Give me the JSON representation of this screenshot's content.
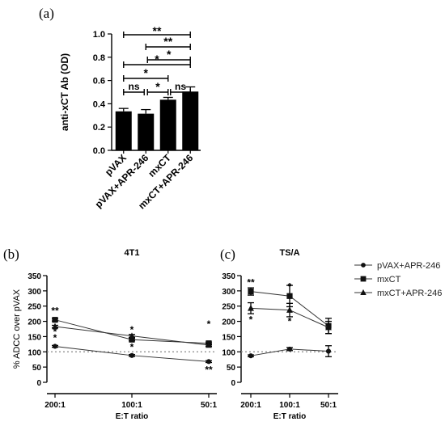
{
  "chart_data": [
    {
      "type": "bar",
      "panel_label": "(a)",
      "ylabel": "anti-xCT Ab (OD)",
      "ylim": [
        0,
        1.0
      ],
      "yticks": [
        "0.0",
        "0.2",
        "0.4",
        "0.6",
        "0.8",
        "1.0"
      ],
      "categories": [
        "pVAX",
        "pVAX+APR-246",
        "mxCT",
        "mxCT+APR-246"
      ],
      "values": [
        0.335,
        0.315,
        0.435,
        0.505
      ],
      "errors": [
        0.025,
        0.035,
        0.02,
        0.04
      ],
      "comparisons": [
        {
          "from": 0,
          "to": 3,
          "label": "**"
        },
        {
          "from": 1,
          "to": 3,
          "label": "**"
        },
        {
          "from": 1,
          "to": 3,
          "label": "*"
        },
        {
          "from": 0,
          "to": 3,
          "label": "*"
        },
        {
          "from": 0,
          "to": 2,
          "label": "*"
        },
        {
          "from": 1,
          "to": 2,
          "label": "*"
        },
        {
          "from": 2,
          "to": 3,
          "label": "ns"
        },
        {
          "from": 0,
          "to": 1,
          "label": "ns"
        }
      ]
    },
    {
      "type": "line",
      "panel_label": "(b)",
      "title": "4T1",
      "ylabel": "% ADCC over pVAX",
      "xlabel": "E:T ratio",
      "ylim": [
        0,
        350
      ],
      "yticks": [
        "0",
        "50",
        "100",
        "150",
        "200",
        "250",
        "300",
        "350"
      ],
      "categories": [
        "200:1",
        "100:1",
        "50:1"
      ],
      "reference_line": 100,
      "series": [
        {
          "name": "pVAX+APR-246",
          "marker": "circle",
          "values": [
            118,
            88,
            68
          ],
          "errors": [
            3,
            3,
            3
          ],
          "annotations": [
            "*",
            "",
            "**"
          ]
        },
        {
          "name": "mxCT",
          "marker": "square",
          "values": [
            205,
            140,
            128
          ],
          "errors": [
            4,
            4,
            4
          ],
          "annotations": [
            "**",
            "*",
            ""
          ]
        },
        {
          "name": "mxCT+APR-246",
          "marker": "triangle",
          "values": [
            183,
            152,
            122
          ],
          "errors": [
            4,
            5,
            4
          ],
          "annotations": [
            "*",
            "*",
            "*"
          ]
        }
      ]
    },
    {
      "type": "line",
      "panel_label": "(c)",
      "title": "TS/A",
      "xlabel": "E:T ratio",
      "ylim": [
        0,
        350
      ],
      "yticks": [
        "0",
        "50",
        "100",
        "150",
        "200",
        "250",
        "300",
        "350"
      ],
      "categories": [
        "200:1",
        "100:1",
        "50:1"
      ],
      "reference_line": 100,
      "legend_position": "right",
      "series": [
        {
          "name": "pVAX+APR-246",
          "marker": "circle",
          "values": [
            87,
            109,
            102
          ],
          "errors": [
            3,
            5,
            18
          ],
          "annotations": [
            "",
            "",
            ""
          ]
        },
        {
          "name": "mxCT",
          "marker": "square",
          "values": [
            298,
            283,
            185
          ],
          "errors": [
            12,
            35,
            25
          ],
          "annotations": [
            "**",
            "*",
            ""
          ]
        },
        {
          "name": "mxCT+APR-246",
          "marker": "triangle",
          "values": [
            243,
            237,
            180
          ],
          "errors": [
            18,
            22,
            20
          ],
          "annotations": [
            "*",
            "*",
            ""
          ]
        }
      ]
    }
  ]
}
